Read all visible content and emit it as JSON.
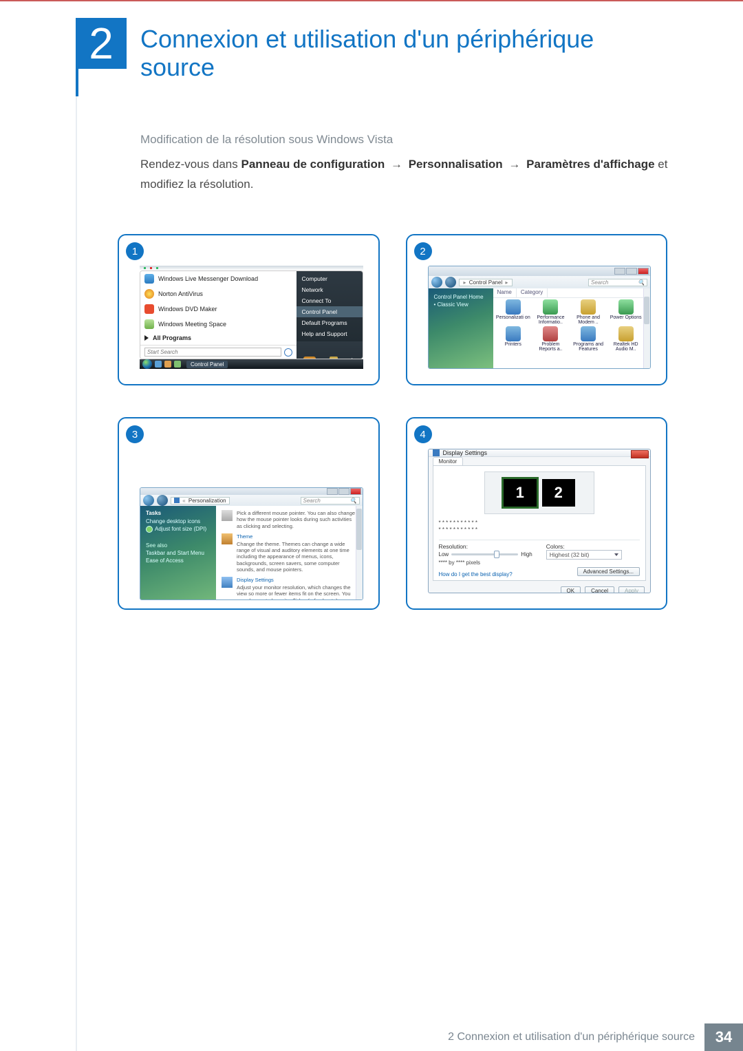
{
  "chapter": {
    "number": "2",
    "title": "Connexion et utilisation d'un périphérique source"
  },
  "section": {
    "subtitle": "Modification de la résolution sous Windows Vista",
    "lead": "Rendez-vous dans ",
    "path_a": "Panneau de configuration",
    "path_b": "Personnalisation",
    "path_c": "Paramètres d'affichage",
    "tail_1": " et",
    "tail_2": "modifiez la résolution.",
    "arrow": "→"
  },
  "badges": {
    "n1": "1",
    "n2": "2",
    "n3": "3",
    "n4": "4"
  },
  "card1": {
    "left_items": [
      {
        "label": "Windows Live Messenger Download",
        "icon": "i-msn"
      },
      {
        "label": "Norton AntiVirus",
        "icon": "i-norton"
      },
      {
        "label": "Windows DVD Maker",
        "icon": "i-dvd"
      },
      {
        "label": "Windows Meeting Space",
        "icon": "i-meet"
      }
    ],
    "all_programs": "All Programs",
    "search_placeholder": "Start Search",
    "right_items": [
      "Computer",
      "Network",
      "Connect To",
      "Control Panel",
      "Default Programs",
      "Help and Support"
    ],
    "right_highlight_index": 3,
    "taskbar_label": "Control Panel",
    "tooltip": "Cust\nHom"
  },
  "card2": {
    "breadcrumb_parts": [
      "",
      "Control Panel",
      ""
    ],
    "search_placeholder": "Search",
    "side_links": [
      "Control Panel Home",
      "Classic View"
    ],
    "columns": [
      "Name",
      "Category"
    ],
    "bullet": "•",
    "icons": [
      {
        "label": "Personalizati on",
        "g": "g1"
      },
      {
        "label": "Performance Informatio..",
        "g": "g2"
      },
      {
        "label": "Phone and Modem ..",
        "g": "g3"
      },
      {
        "label": "Power Options",
        "g": "g2"
      },
      {
        "label": "Printers",
        "g": "g1"
      },
      {
        "label": "Problem Reports a..",
        "g": "g4"
      },
      {
        "label": "Programs and Features",
        "g": "g1"
      },
      {
        "label": "Realtek HD Audio M..",
        "g": "g3"
      }
    ]
  },
  "card3": {
    "breadcrumb": "Personalization",
    "search_placeholder": "Search",
    "side": {
      "tasks": "Tasks",
      "links": [
        "Change desktop icons",
        "Adjust font size (DPI)"
      ],
      "see_also": "See also",
      "foot": [
        "Taskbar and Start Menu",
        "Ease of Access"
      ]
    },
    "entries": [
      {
        "title": "",
        "body": "Pick a different mouse pointer. You can also change how the mouse pointer looks during such activities as clicking and selecting."
      },
      {
        "title": "Theme",
        "body": "Change the theme. Themes can change a wide range of visual and auditory elements at one time including the appearance of menus, icons, backgrounds, screen savers, some computer sounds, and mouse pointers."
      },
      {
        "title": "Display Settings",
        "body": "Adjust your monitor resolution, which changes the view so more or fewer items fit on the screen. You can also control monitor flicker (refresh rate)."
      }
    ]
  },
  "card4": {
    "title": "Display Settings",
    "tab": "Monitor",
    "mon1": "1",
    "mon2": "2",
    "stars": "* * * * * * * * * * *\n* * * * * * * * * * *",
    "res_label": "Resolution:",
    "low": "Low",
    "high": "High",
    "slider_pos_pct": 64,
    "px_line": "**** by **** pixels",
    "colors_label": "Colors:",
    "colors_value": "Highest (32 bit)",
    "help_link": "How do I get the best display?",
    "adv": "Advanced Settings...",
    "ok": "OK",
    "cancel": "Cancel",
    "apply": "Apply"
  },
  "footer": {
    "text": "2 Connexion et utilisation d'un périphérique source",
    "page": "34"
  },
  "colors": {
    "accent": "#1275c4",
    "top_rule": "#ca5a58",
    "footer_bg": "#76858f",
    "muted": "#7a8690"
  }
}
